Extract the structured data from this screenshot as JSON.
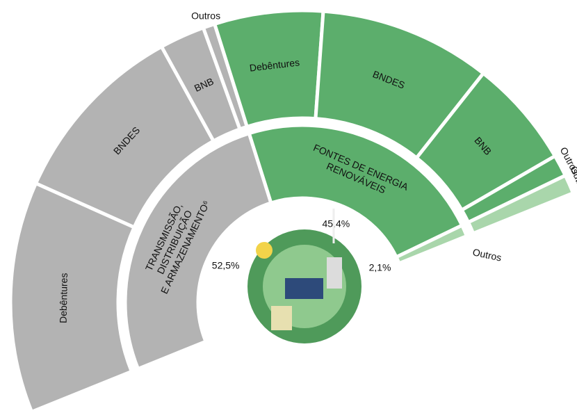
{
  "chart_data": {
    "type": "sunburst",
    "segments": [
      {
        "name": [
          "TRANSMISSÃO,",
          "DISTRIBUIÇÃO",
          "E ARMAZENAMENTO⁶"
        ],
        "value": 52.5,
        "value_label": "52,5%",
        "color": "#b3b3b3",
        "children": [
          {
            "name": "Debêntures",
            "value": 25.6
          },
          {
            "name": "BNDES",
            "value": 20.6
          },
          {
            "name": "BNB",
            "value": 5.0
          },
          {
            "name": "Outros",
            "value": 1.3
          }
        ]
      },
      {
        "name": [
          "FONTES DE ENERGIA",
          "RENOVÁVEIS"
        ],
        "value": 45.4,
        "value_label": "45,4%",
        "color": "#5cae6c",
        "children": [
          {
            "name": "Debêntures",
            "value": 12.0
          },
          {
            "name": "BNDES",
            "value": 19.0
          },
          {
            "name": "BNB",
            "value": 12.0
          },
          {
            "name": "Outros",
            "value": 2.4
          }
        ]
      },
      {
        "name": [
          "Outros"
        ],
        "value": 2.1,
        "value_label": "2,1%",
        "color": "#a9d6ab",
        "children": [
          {
            "name": "Outros",
            "value": 2.1
          }
        ]
      }
    ]
  }
}
